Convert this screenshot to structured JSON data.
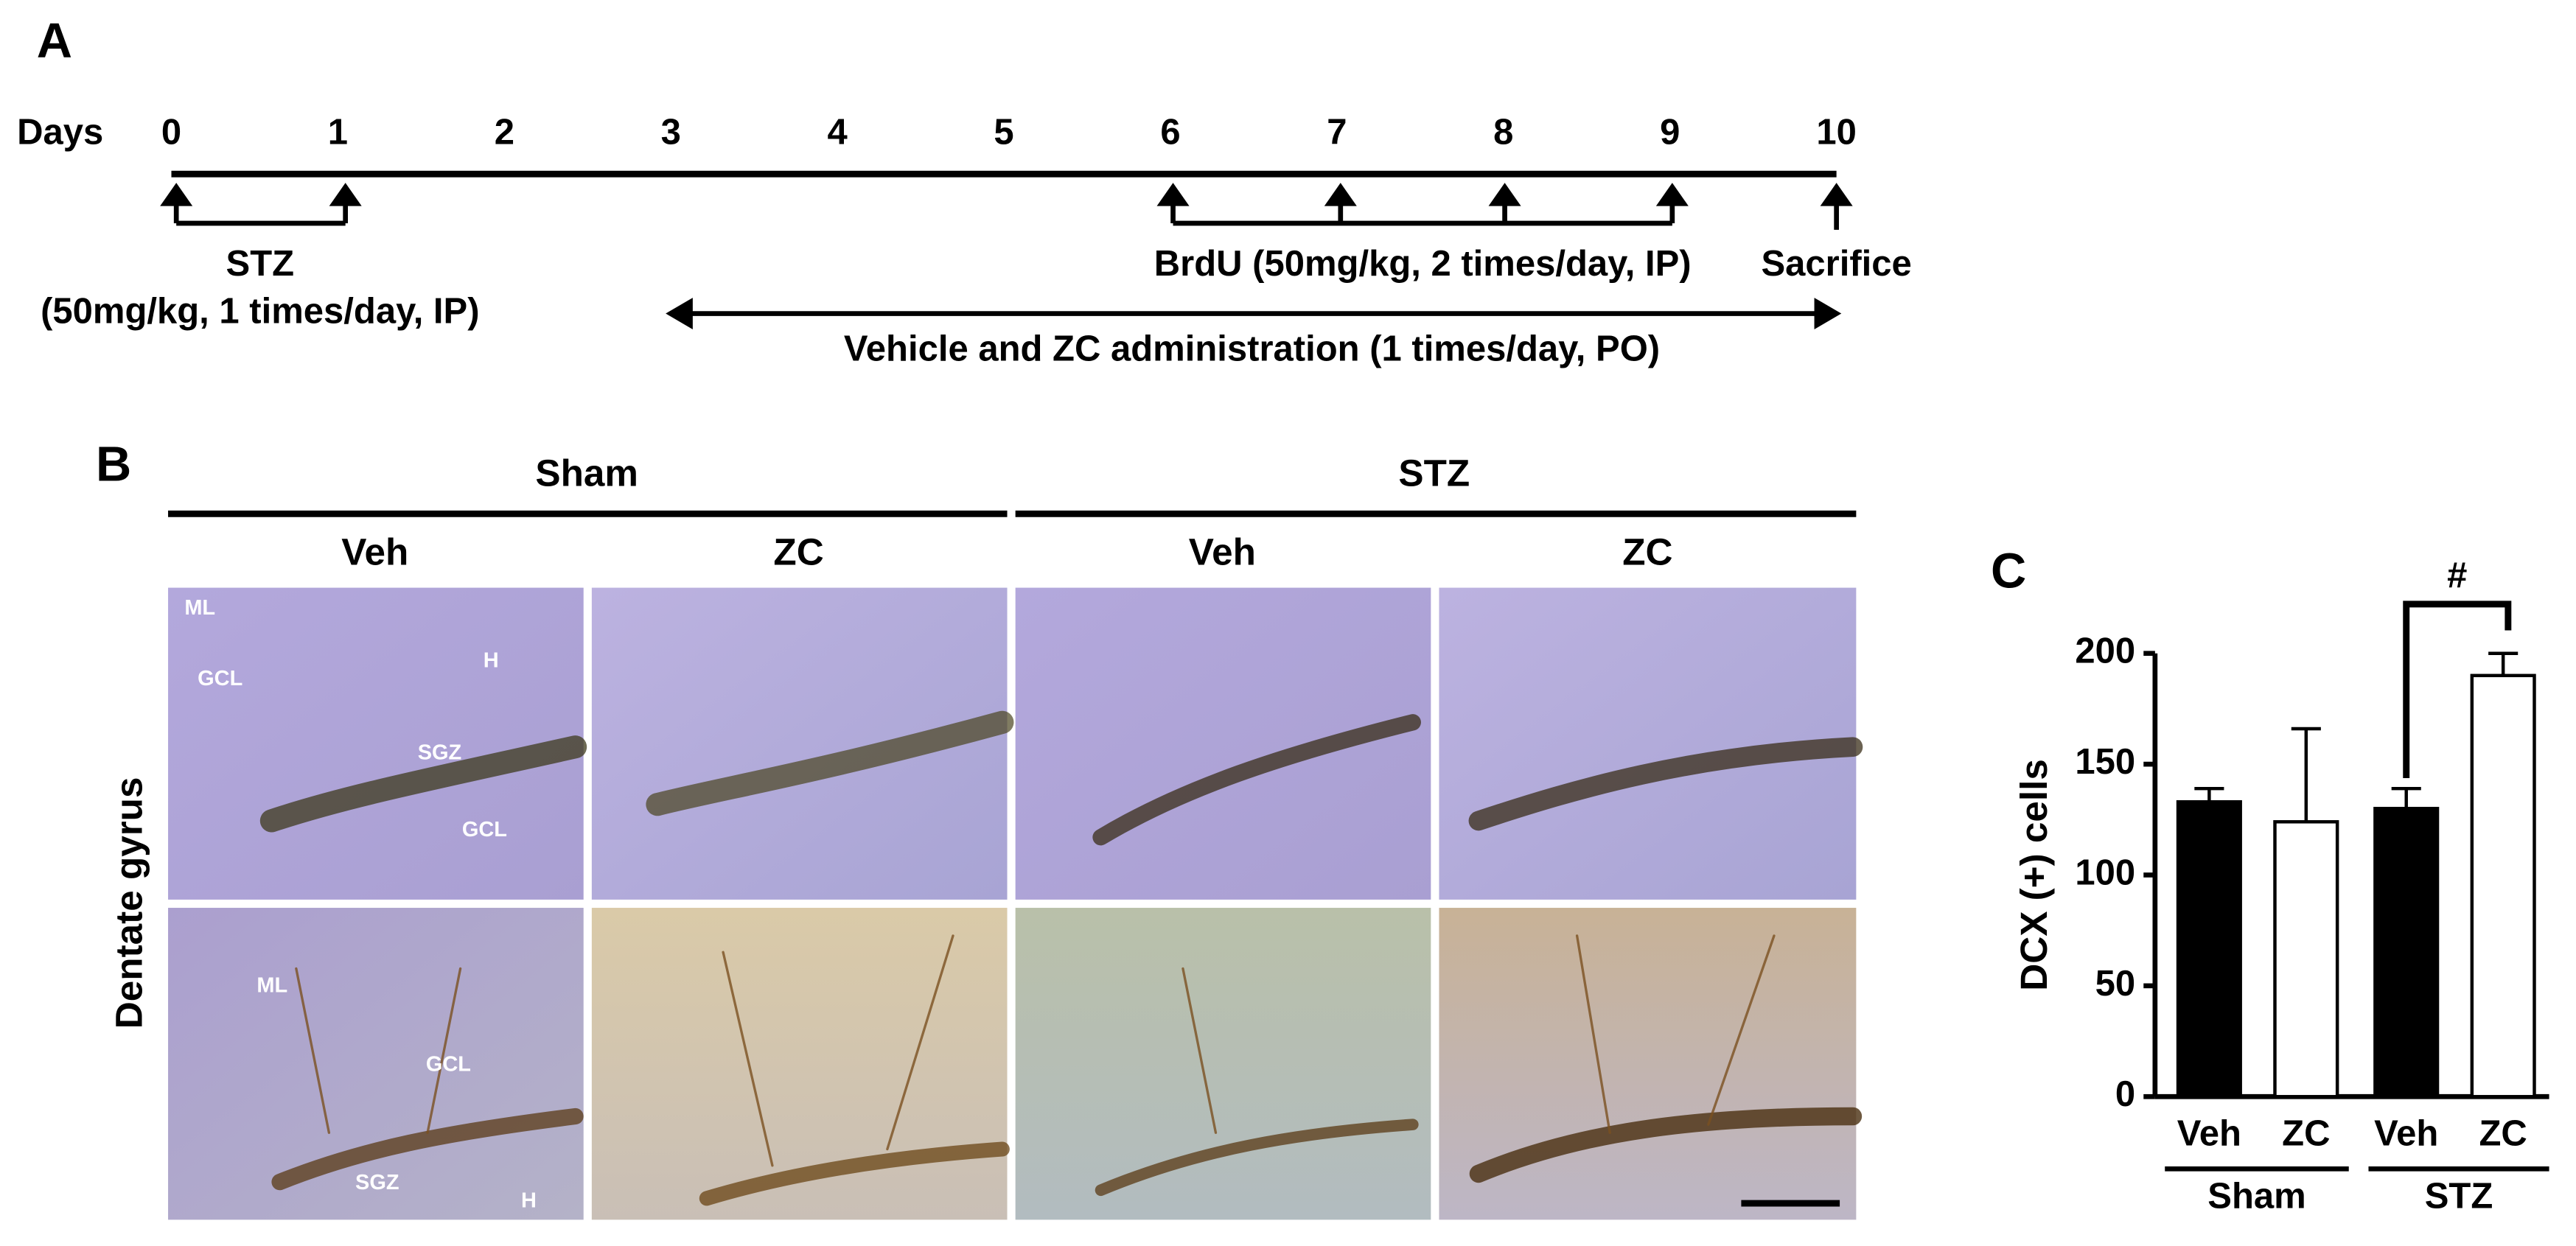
{
  "panel_a": {
    "label": "A",
    "days_label": "Days",
    "days": [
      0,
      1,
      2,
      3,
      4,
      5,
      6,
      7,
      8,
      9,
      10
    ],
    "stz": "STZ",
    "stz_dose": "(50mg/kg, 1 times/day, IP)",
    "brdu": "BrdU (50mg/kg, 2 times/day, IP)",
    "sacrifice": "Sacrifice",
    "treatment": "Vehicle and ZC administration (1 times/day, PO)"
  },
  "panel_b": {
    "label": "B",
    "groups": [
      "Sham",
      "STZ"
    ],
    "columns": [
      "Veh",
      "ZC",
      "Veh",
      "ZC"
    ],
    "row_label": "Dentate gyrus",
    "image_labels_top": [
      "ML",
      "GCL",
      "H",
      "SGZ",
      "GCL"
    ],
    "image_labels_bottom": [
      "ML",
      "GCL",
      "SGZ",
      "H"
    ]
  },
  "panel_c": {
    "label": "C"
  },
  "chart_data": {
    "type": "bar",
    "ylabel": "DCX (+) cells",
    "categories": [
      "Veh",
      "ZC",
      "Veh",
      "ZC"
    ],
    "group_labels": [
      "Sham",
      "STZ"
    ],
    "values": [
      133,
      124,
      130,
      190
    ],
    "errors": [
      6,
      42,
      9,
      10
    ],
    "colors": [
      "#000000",
      "#ffffff",
      "#000000",
      "#ffffff"
    ],
    "ylim": [
      0,
      200
    ],
    "yticks": [
      0,
      50,
      100,
      150,
      200
    ],
    "annotation": "#"
  }
}
